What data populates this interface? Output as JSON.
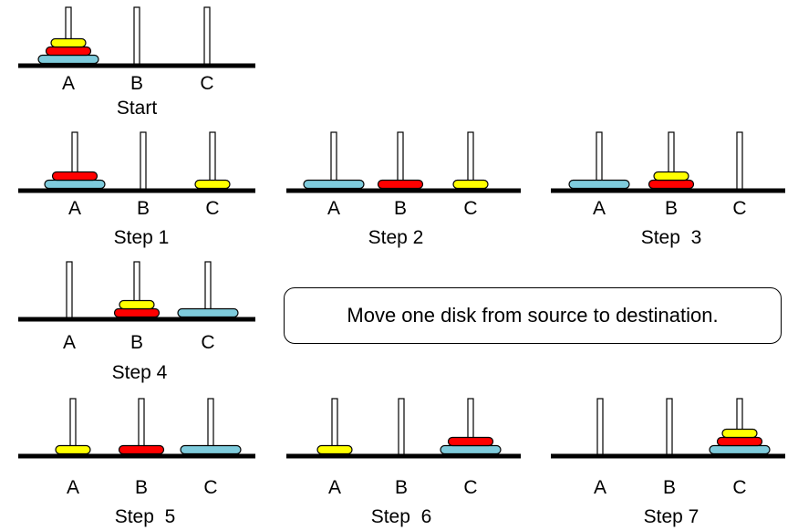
{
  "colors": {
    "small": "#ffff00",
    "medium": "#ff0000",
    "large": "#7ecbdc",
    "base": "#000000",
    "peg": "#ffffff"
  },
  "peg_labels": [
    "A",
    "B",
    "C"
  ],
  "note": "Move one disk from source to destination.",
  "states": [
    {
      "title": "Start",
      "pegs": [
        [
          "large",
          "medium",
          "small"
        ],
        [],
        []
      ]
    },
    {
      "title": "Step 1",
      "pegs": [
        [
          "large",
          "medium"
        ],
        [],
        [
          "small"
        ]
      ]
    },
    {
      "title": "Step 2",
      "pegs": [
        [
          "large"
        ],
        [
          "medium"
        ],
        [
          "small"
        ]
      ]
    },
    {
      "title": "Step  3",
      "pegs": [
        [
          "large"
        ],
        [
          "medium",
          "small"
        ],
        []
      ]
    },
    {
      "title": "Step 4",
      "pegs": [
        [],
        [
          "medium",
          "small"
        ],
        [
          "large"
        ]
      ]
    },
    {
      "title": "Step  5",
      "pegs": [
        [
          "small"
        ],
        [
          "medium"
        ],
        [
          "large"
        ]
      ]
    },
    {
      "title": "Step  6",
      "pegs": [
        [
          "small"
        ],
        [],
        [
          "large",
          "medium"
        ]
      ]
    },
    {
      "title": "Step 7",
      "pegs": [
        [],
        [],
        [
          "large",
          "medium",
          "small"
        ]
      ]
    }
  ]
}
